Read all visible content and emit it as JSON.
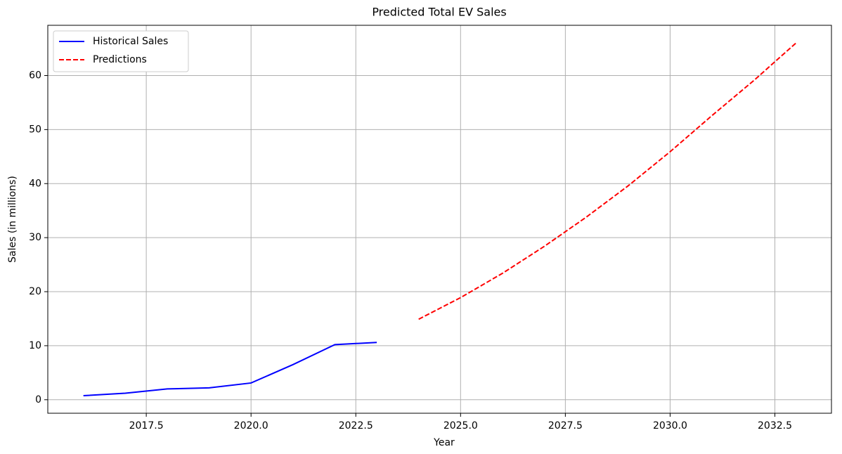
{
  "chart_data": {
    "type": "line",
    "title": "Predicted Total EV Sales",
    "xlabel": "Year",
    "ylabel": "Sales (in millions)",
    "series": [
      {
        "name": "Historical Sales",
        "color": "#0000ff",
        "style": "solid",
        "x": [
          2016,
          2017,
          2018,
          2019,
          2020,
          2021,
          2022,
          2023
        ],
        "values": [
          0.75,
          1.2,
          2.0,
          2.2,
          3.1,
          6.5,
          10.2,
          10.6
        ]
      },
      {
        "name": "Predictions",
        "color": "#ff0000",
        "style": "dashed",
        "x": [
          2024,
          2025,
          2026,
          2027,
          2028,
          2029,
          2030,
          2031,
          2032,
          2033
        ],
        "values": [
          14.9,
          18.9,
          23.4,
          28.4,
          33.8,
          39.6,
          45.9,
          52.6,
          59.1,
          66.0
        ]
      }
    ],
    "xlim": [
      2015.15,
      2033.85
    ],
    "xticks": [
      {
        "value": 2017.5,
        "label": "2017.5"
      },
      {
        "value": 2020,
        "label": "2020.0"
      },
      {
        "value": 2022.5,
        "label": "2022.5"
      },
      {
        "value": 2025,
        "label": "2025.0"
      },
      {
        "value": 2027.5,
        "label": "2027.5"
      },
      {
        "value": 2030,
        "label": "2030.0"
      },
      {
        "value": 2032.5,
        "label": "2032.5"
      }
    ],
    "ylim": [
      -2.5,
      69.3
    ],
    "yticks": [
      0,
      10,
      20,
      30,
      40,
      50,
      60
    ],
    "grid": true,
    "legend": "upper left"
  }
}
